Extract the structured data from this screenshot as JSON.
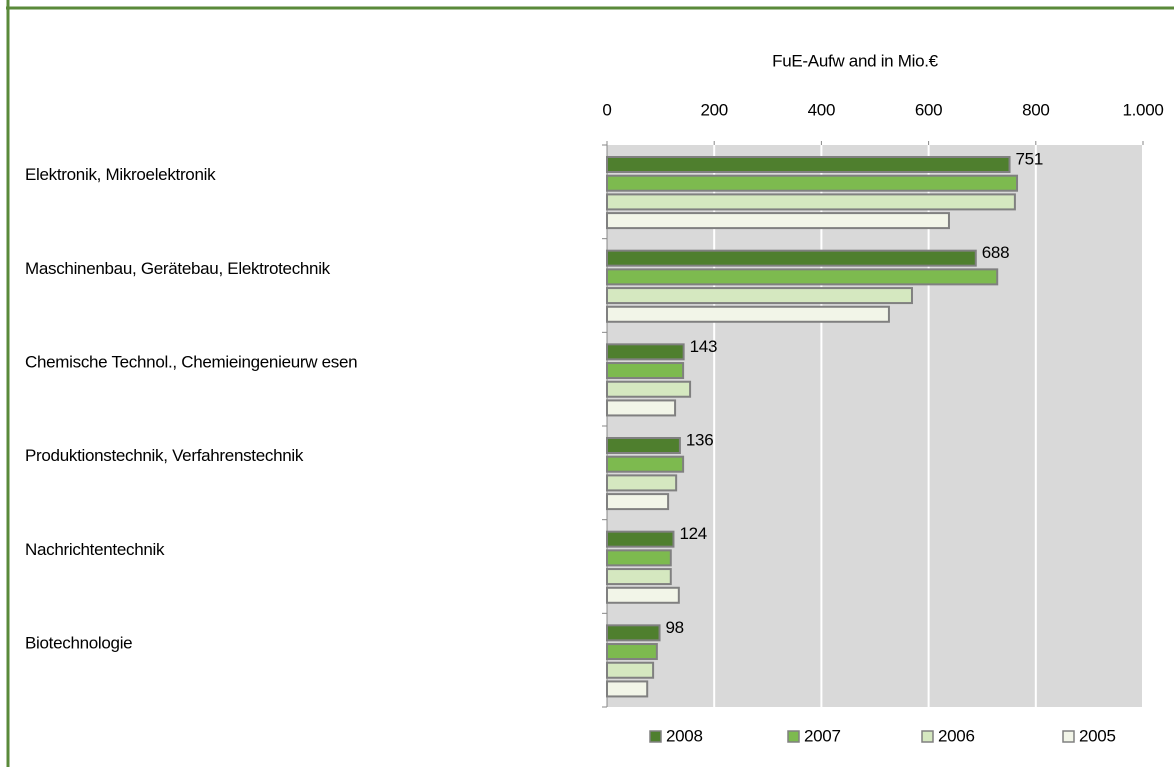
{
  "chart_data": {
    "type": "hbar",
    "axis_title": "FuE-Aufw and in Mio.€",
    "categories": [
      "Elektronik, Mikroelektronik",
      "Maschinenbau, Gerätebau, Elektrotechnik",
      "Chemische Technol., Chemieingenieurw esen",
      "Produktionstechnik, Verfahrenstechnik",
      "Nachrichtentechnik",
      "Biotechnologie"
    ],
    "series": [
      {
        "name": "2008",
        "color": "#4f7f2e",
        "show_value_labels": true,
        "values": [
          751,
          688,
          143,
          136,
          124,
          98
        ]
      },
      {
        "name": "2007",
        "color": "#7dba4f",
        "values": [
          765,
          728,
          142,
          142,
          119,
          93
        ]
      },
      {
        "name": "2006",
        "color": "#d5e8c0",
        "values": [
          761,
          569,
          155,
          129,
          119,
          86
        ]
      },
      {
        "name": "2005",
        "color": "#f2f5e8",
        "values": [
          638,
          526,
          127,
          114,
          134,
          75
        ]
      }
    ],
    "xlim": [
      0,
      1000
    ],
    "xticks": [
      0,
      200,
      400,
      600,
      800,
      {
        "value": 1000,
        "label": "1.000"
      }
    ],
    "grid": true,
    "legend": "bottom"
  }
}
